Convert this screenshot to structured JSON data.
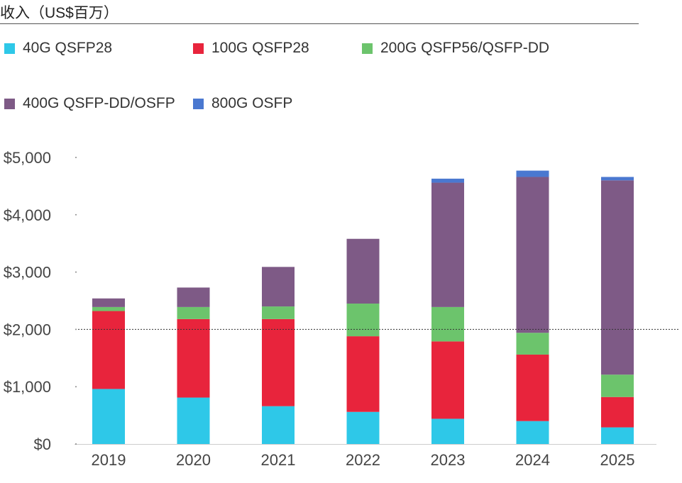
{
  "chart_data": {
    "type": "bar",
    "stacked": true,
    "title": "收入（US$百万）",
    "categories": [
      "2019",
      "2020",
      "2021",
      "2022",
      "2023",
      "2024",
      "2025"
    ],
    "series": [
      {
        "name": "40G QSFP28",
        "color": "#2ec8e8",
        "values": [
          960,
          810,
          660,
          560,
          440,
          400,
          290
        ]
      },
      {
        "name": "100G QSFP28",
        "color": "#e8243c",
        "values": [
          1360,
          1370,
          1520,
          1320,
          1350,
          1160,
          530
        ]
      },
      {
        "name": "200G QSFP56/QSFP-DD",
        "color": "#6cc46c",
        "values": [
          70,
          210,
          220,
          570,
          600,
          380,
          390
        ]
      },
      {
        "name": "400G QSFP-DD/OSFP",
        "color": "#7e5a86",
        "values": [
          150,
          340,
          690,
          1130,
          2170,
          2720,
          3390
        ]
      },
      {
        "name": "800G OSFP",
        "color": "#4a78d0",
        "values": [
          0,
          0,
          0,
          0,
          70,
          110,
          60
        ]
      }
    ],
    "y_ticks": [
      "$0",
      "$1,000",
      "$2,000",
      "$3,000",
      "$4,000",
      "$5,000"
    ],
    "ylim": [
      0,
      5000
    ],
    "reference_line": 2000,
    "legend_position": "top"
  }
}
